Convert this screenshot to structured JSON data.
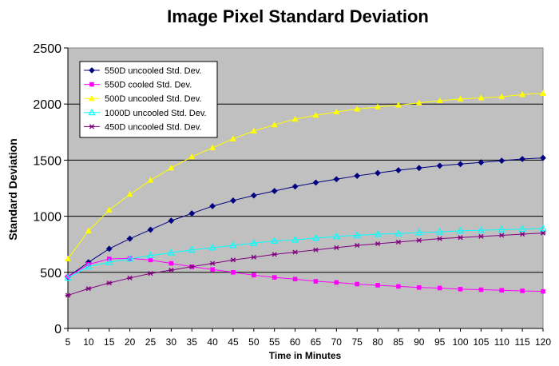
{
  "chart_data": {
    "type": "line",
    "title": "Image Pixel Standard Deviation",
    "xlabel": "Time in Minutes",
    "ylabel": "Standard Deviation",
    "x": [
      5,
      10,
      15,
      20,
      25,
      30,
      35,
      40,
      45,
      50,
      55,
      60,
      65,
      70,
      75,
      80,
      85,
      90,
      95,
      100,
      105,
      110,
      115,
      120
    ],
    "xlim": [
      5,
      120
    ],
    "ylim": [
      0,
      2500
    ],
    "yticks": [
      0,
      500,
      1000,
      1500,
      2000,
      2500
    ],
    "grid": "horizontal",
    "legend_position": "top-left",
    "plot_background": "#c0c0c0",
    "series": [
      {
        "name": "550D uncooled Std. Dev.",
        "color": "#000080",
        "marker": "diamond",
        "values": [
          460,
          590,
          710,
          800,
          880,
          960,
          1025,
          1090,
          1140,
          1185,
          1225,
          1265,
          1300,
          1330,
          1360,
          1385,
          1410,
          1430,
          1450,
          1465,
          1480,
          1495,
          1510,
          1520
        ]
      },
      {
        "name": "550D cooled Std. Dev.",
        "color": "#ff00ff",
        "marker": "square",
        "values": [
          460,
          570,
          620,
          625,
          610,
          580,
          550,
          525,
          500,
          475,
          455,
          440,
          420,
          410,
          395,
          385,
          375,
          365,
          360,
          350,
          345,
          340,
          335,
          330
        ]
      },
      {
        "name": "500D uncooled Std. Dev.",
        "color": "#ffff00",
        "marker": "triangle",
        "values": [
          620,
          870,
          1055,
          1195,
          1320,
          1430,
          1530,
          1610,
          1690,
          1760,
          1815,
          1865,
          1900,
          1930,
          1955,
          1975,
          1990,
          2010,
          2030,
          2045,
          2055,
          2065,
          2085,
          2095
        ]
      },
      {
        "name": "1000D uncooled Std. Dev.",
        "color": "#00ffff",
        "marker": "triangle-open",
        "values": [
          450,
          550,
          590,
          620,
          650,
          675,
          700,
          720,
          740,
          760,
          780,
          790,
          805,
          820,
          830,
          840,
          845,
          855,
          860,
          870,
          875,
          880,
          885,
          890
        ]
      },
      {
        "name": "450D uncooled Std. Dev.",
        "color": "#800080",
        "marker": "star",
        "values": [
          295,
          355,
          405,
          450,
          490,
          520,
          550,
          580,
          610,
          635,
          660,
          680,
          700,
          720,
          740,
          755,
          770,
          785,
          800,
          810,
          820,
          830,
          840,
          850
        ]
      }
    ]
  }
}
